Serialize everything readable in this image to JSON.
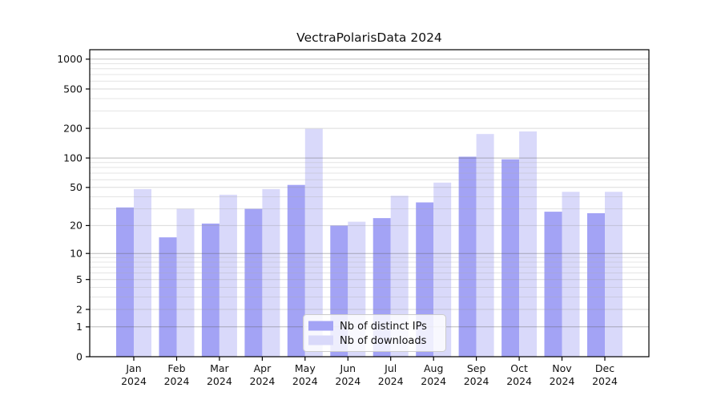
{
  "chart_data": {
    "type": "bar",
    "title": "VectraPolarisData 2024",
    "categories": [
      "Jan 2024",
      "Feb 2024",
      "Mar 2024",
      "Apr 2024",
      "May 2024",
      "Jun 2024",
      "Jul 2024",
      "Aug 2024",
      "Sep 2024",
      "Oct 2024",
      "Nov 2024",
      "Dec 2024"
    ],
    "series": [
      {
        "name": "Nb of distinct IPs",
        "color": "#a3a3f5",
        "values": [
          31,
          15,
          21,
          30,
          53,
          20,
          24,
          35,
          103,
          97,
          28,
          27
        ]
      },
      {
        "name": "Nb of downloads",
        "color": "#d9d9fa",
        "values": [
          48,
          30,
          42,
          48,
          198,
          22,
          41,
          56,
          175,
          186,
          45,
          45
        ]
      }
    ],
    "yticks": [
      0,
      1,
      2,
      5,
      10,
      20,
      50,
      100,
      200,
      500,
      1000
    ],
    "scale": "log10(v+1)",
    "ylim": [
      0,
      1000
    ],
    "xlabel": "",
    "ylabel": "",
    "grid": true,
    "legend_position": "bottom-center-inside",
    "colors": {
      "axis": "#000000",
      "grid_major": "#b3b3b3",
      "grid_minor": "#e9e9e9",
      "grid_labeled": "#dedede",
      "legend_border": "#cccccc",
      "background": "#ffffff"
    }
  }
}
